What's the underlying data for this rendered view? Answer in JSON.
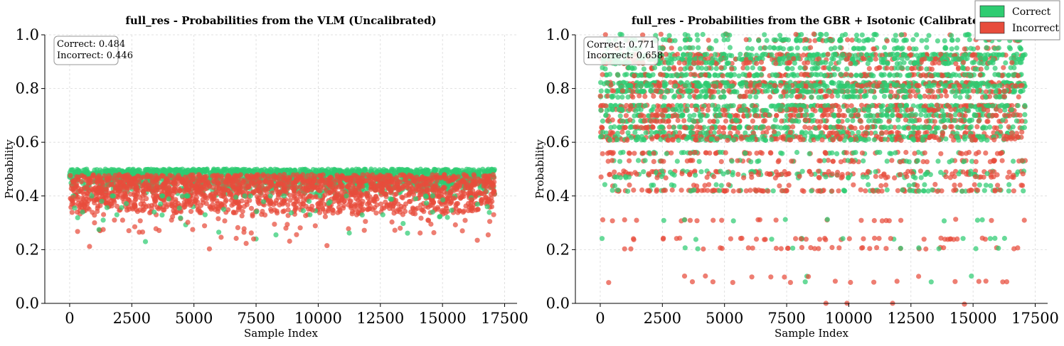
{
  "chart_data": [
    {
      "type": "scatter",
      "title": "full_res - Probabilities from the VLM (Uncalibrated)",
      "xlabel": "Sample Index",
      "ylabel": "Probability",
      "xlim": [
        -1000,
        18000
      ],
      "ylim": [
        0.0,
        1.0
      ],
      "xticks": [
        0,
        2500,
        5000,
        7500,
        10000,
        12500,
        15000,
        17500
      ],
      "xtick_labels": [
        "0",
        "2500",
        "5000",
        "7500",
        "10000",
        "12500",
        "15000",
        "17500"
      ],
      "yticks": [
        0.0,
        0.2,
        0.4,
        0.6,
        0.8,
        1.0
      ],
      "ytick_labels": [
        "0.0",
        "0.2",
        "0.4",
        "0.6",
        "0.8",
        "1.0"
      ],
      "grid": true,
      "n_samples": 17100,
      "stats": {
        "correct": "Correct: 0.484",
        "incorrect": "Incorrect: 0.446"
      },
      "series": [
        {
          "name": "Correct",
          "color": "#2ecc71",
          "band": [
            0.4,
            0.5
          ],
          "outlier_range": [
            0.23,
            0.4
          ],
          "outliers": [
            [
              200,
              0.355
            ],
            [
              520,
              0.34
            ],
            [
              1180,
              0.275
            ],
            [
              1350,
              0.31
            ],
            [
              1900,
              0.33
            ],
            [
              3050,
              0.23
            ],
            [
              3400,
              0.34
            ],
            [
              5450,
              0.33
            ],
            [
              6000,
              0.265
            ],
            [
              6200,
              0.35
            ],
            [
              7500,
              0.24
            ],
            [
              8300,
              0.255
            ],
            [
              9400,
              0.345
            ],
            [
              11250,
              0.262
            ],
            [
              12600,
              0.33
            ],
            [
              14600,
              0.34
            ],
            [
              15200,
              0.32
            ],
            [
              16800,
              0.36
            ]
          ]
        },
        {
          "name": "Incorrect",
          "color": "#e74c3c",
          "band": [
            0.33,
            0.48
          ],
          "outlier_range": [
            0.2,
            0.35
          ],
          "outliers": [
            [
              800,
              0.212
            ],
            [
              1000,
              0.3
            ],
            [
              1350,
              0.275
            ],
            [
              1800,
              0.31
            ],
            [
              2800,
              0.265
            ],
            [
              4100,
              0.31
            ],
            [
              4950,
              0.275
            ],
            [
              5620,
              0.203
            ],
            [
              6700,
              0.242
            ],
            [
              7400,
              0.24
            ],
            [
              8700,
              0.28
            ],
            [
              10350,
              0.215
            ],
            [
              11900,
              0.305
            ],
            [
              13300,
              0.28
            ],
            [
              14100,
              0.262
            ],
            [
              15800,
              0.27
            ],
            [
              16400,
              0.235
            ],
            [
              16900,
              0.305
            ]
          ]
        }
      ]
    },
    {
      "type": "scatter",
      "title": "full_res - Probabilities from the GBR + Isotonic (Calibrated)",
      "xlabel": "Sample Index",
      "ylabel": "Probability",
      "xlim": [
        -1000,
        18000
      ],
      "ylim": [
        0.0,
        1.0
      ],
      "xticks": [
        0,
        2500,
        5000,
        7500,
        10000,
        12500,
        15000,
        17500
      ],
      "xtick_labels": [
        "0",
        "2500",
        "5000",
        "7500",
        "10000",
        "12500",
        "15000",
        "17500"
      ],
      "yticks": [
        0.0,
        0.2,
        0.4,
        0.6,
        0.8,
        1.0
      ],
      "ytick_labels": [
        "0.0",
        "0.2",
        "0.4",
        "0.6",
        "0.8",
        "1.0"
      ],
      "grid": true,
      "n_samples": 17100,
      "stats": {
        "correct": "Correct: 0.771",
        "incorrect": "Incorrect: 0.658"
      },
      "levels": [
        {
          "p": 1.0,
          "density": 0.22
        },
        {
          "p": 0.98,
          "density": 0.45
        },
        {
          "p": 0.95,
          "density": 0.35
        },
        {
          "p": 0.925,
          "density": 0.9
        },
        {
          "p": 0.91,
          "density": 0.8
        },
        {
          "p": 0.895,
          "density": 0.6
        },
        {
          "p": 0.875,
          "density": 0.4
        },
        {
          "p": 0.85,
          "density": 1.0
        },
        {
          "p": 0.82,
          "density": 1.0
        },
        {
          "p": 0.81,
          "density": 1.0
        },
        {
          "p": 0.79,
          "density": 1.0
        },
        {
          "p": 0.77,
          "density": 0.5
        },
        {
          "p": 0.735,
          "density": 0.95
        },
        {
          "p": 0.72,
          "density": 0.7
        },
        {
          "p": 0.7,
          "density": 0.85
        },
        {
          "p": 0.68,
          "density": 0.6
        },
        {
          "p": 0.655,
          "density": 0.8
        },
        {
          "p": 0.635,
          "density": 0.5
        },
        {
          "p": 0.62,
          "density": 0.95
        },
        {
          "p": 0.61,
          "density": 0.6
        },
        {
          "p": 0.56,
          "density": 0.4
        },
        {
          "p": 0.53,
          "density": 0.35
        },
        {
          "p": 0.49,
          "density": 0.3
        },
        {
          "p": 0.48,
          "density": 0.35
        },
        {
          "p": 0.47,
          "density": 0.2
        },
        {
          "p": 0.44,
          "density": 0.15
        },
        {
          "p": 0.42,
          "density": 0.55
        },
        {
          "p": 0.31,
          "density": 0.12
        },
        {
          "p": 0.24,
          "density": 0.18
        },
        {
          "p": 0.205,
          "density": 0.15
        },
        {
          "p": 0.1,
          "density": 0.03
        },
        {
          "p": 0.08,
          "density": 0.06
        },
        {
          "p": 0.0,
          "density": 0.01
        }
      ],
      "series": [
        {
          "name": "Correct",
          "color": "#2ecc71",
          "mean": 0.771
        },
        {
          "name": "Incorrect",
          "color": "#e74c3c",
          "mean": 0.658
        }
      ],
      "legend": {
        "position": "top-right",
        "entries": [
          "Correct",
          "Incorrect"
        ]
      }
    }
  ]
}
